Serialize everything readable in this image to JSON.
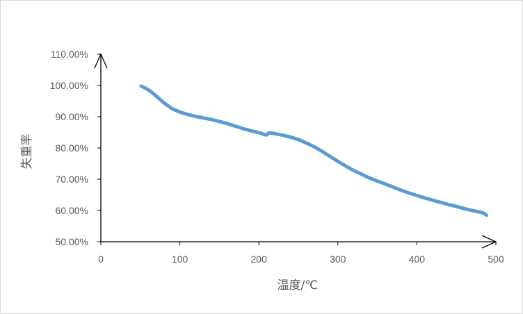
{
  "chart_data": {
    "type": "line",
    "title": "",
    "xlabel": "温度/℃",
    "ylabel": "失重率",
    "xlim": [
      0,
      500
    ],
    "ylim": [
      50,
      110
    ],
    "x_ticks": [
      "0",
      "100",
      "200",
      "300",
      "400",
      "500"
    ],
    "y_ticks": [
      "50.00%",
      "60.00%",
      "70.00%",
      "80.00%",
      "90.00%",
      "100.00%",
      "110.00%"
    ],
    "grid": false,
    "legend": "none",
    "series": [
      {
        "color": "#5b9bd5",
        "x": [
          51,
          55,
          60,
          65,
          70,
          75,
          80,
          90,
          100,
          110,
          120,
          130,
          140,
          150,
          160,
          170,
          180,
          190,
          200,
          205,
          208,
          210,
          212,
          215,
          220,
          230,
          240,
          250,
          260,
          270,
          280,
          290,
          300,
          310,
          320,
          330,
          340,
          350,
          360,
          370,
          380,
          390,
          400,
          410,
          420,
          430,
          440,
          450,
          460,
          470,
          480,
          484,
          486,
          488
        ],
        "y": [
          99.8,
          99.3,
          98.6,
          97.7,
          96.6,
          95.5,
          94.4,
          92.6,
          91.5,
          90.7,
          90.1,
          89.6,
          89.1,
          88.5,
          87.8,
          87.0,
          86.2,
          85.5,
          84.9,
          84.5,
          84.2,
          84.2,
          84.7,
          84.8,
          84.6,
          84.1,
          83.5,
          82.7,
          81.6,
          80.4,
          78.9,
          77.3,
          75.7,
          74.2,
          72.8,
          71.6,
          70.4,
          69.4,
          68.5,
          67.5,
          66.5,
          65.6,
          64.8,
          64.0,
          63.3,
          62.6,
          61.9,
          61.3,
          60.6,
          60.0,
          59.5,
          59.2,
          58.9,
          58.5
        ]
      }
    ]
  }
}
